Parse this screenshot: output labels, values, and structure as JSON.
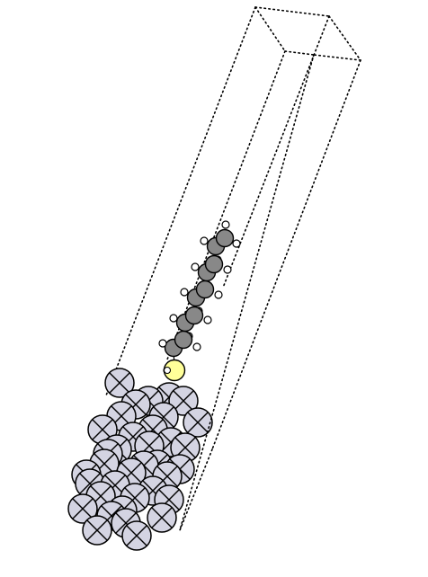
{
  "diagram": {
    "kind": "molecular-simulation-cell",
    "colors": {
      "background": "#ffffff",
      "cell_edge": "#000000",
      "metal_atom_fill": "#d4d4e2",
      "sulfur_atom_fill": "#ffff99",
      "carbon_atom_fill": "#888888",
      "hydrogen_atom_fill": "#ffffff",
      "atom_outline": "#000000"
    },
    "atoms": {
      "metal_count": 36,
      "sulfur_count": 1,
      "carbon_count": 10,
      "hydrogen_count": 21
    }
  }
}
